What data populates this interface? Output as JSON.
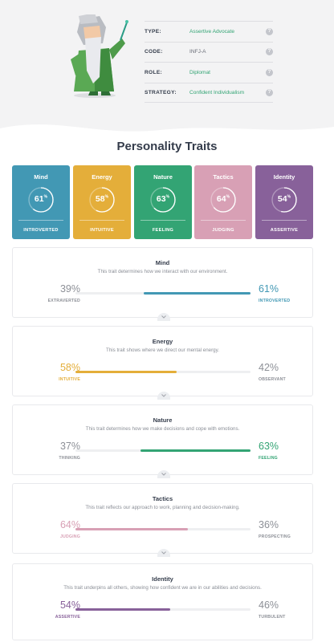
{
  "profile": {
    "rows": [
      {
        "key": "TYPE:",
        "value": "Assertive Advocate",
        "accent": true
      },
      {
        "key": "CODE:",
        "value": "INFJ-A",
        "accent": false
      },
      {
        "key": "ROLE:",
        "value": "Diplomat",
        "accent": true
      },
      {
        "key": "STRATEGY:",
        "value": "Confident Individualism",
        "accent": true
      }
    ],
    "help_glyph": "?"
  },
  "section_title": "Personality Traits",
  "cards": [
    {
      "title": "Mind",
      "percent": "61",
      "label": "INTROVERTED",
      "value": 61,
      "color": "#4298b4"
    },
    {
      "title": "Energy",
      "percent": "58",
      "label": "INTUITIVE",
      "value": 58,
      "color": "#e4ae3a"
    },
    {
      "title": "Nature",
      "percent": "63",
      "label": "FEELING",
      "value": 63,
      "color": "#33a474"
    },
    {
      "title": "Tactics",
      "percent": "64",
      "label": "JUDGING",
      "value": 64,
      "color": "#d8a0b5"
    },
    {
      "title": "Identity",
      "percent": "54",
      "label": "ASSERTIVE",
      "value": 54,
      "color": "#88619a"
    }
  ],
  "percent_sign": "%",
  "details": [
    {
      "title": "Mind",
      "desc": "This trait determines how we interact with our environment.",
      "left_pct": "39%",
      "left_label": "EXTRAVERTED",
      "right_pct": "61%",
      "right_label": "INTROVERTED",
      "dominant": "right",
      "value": 61,
      "color": "#4298b4"
    },
    {
      "title": "Energy",
      "desc": "This trait shows where we direct our mental energy.",
      "left_pct": "58%",
      "left_label": "INTUITIVE",
      "right_pct": "42%",
      "right_label": "OBSERVANT",
      "dominant": "left",
      "value": 58,
      "color": "#e4ae3a"
    },
    {
      "title": "Nature",
      "desc": "This trait determines how we make decisions and cope with emotions.",
      "left_pct": "37%",
      "left_label": "THINKING",
      "right_pct": "63%",
      "right_label": "FEELING",
      "dominant": "right",
      "value": 63,
      "color": "#33a474"
    },
    {
      "title": "Tactics",
      "desc": "This trait reflects our approach to work, planning and decision-making.",
      "left_pct": "64%",
      "left_label": "JUDGING",
      "right_pct": "36%",
      "right_label": "PROSPECTING",
      "dominant": "left",
      "value": 64,
      "color": "#d8a0b5"
    },
    {
      "title": "Identity",
      "desc": "This trait underpins all others, showing how confident we are in our abilities and decisions.",
      "left_pct": "54%",
      "left_label": "ASSERTIVE",
      "right_pct": "46%",
      "right_label": "TURBULENT",
      "dominant": "left",
      "value": 54,
      "color": "#88619a"
    }
  ],
  "icons": {
    "character": "advocate-character-illustration",
    "help": "help-circle-icon",
    "expand": "chevron-down-icon"
  }
}
